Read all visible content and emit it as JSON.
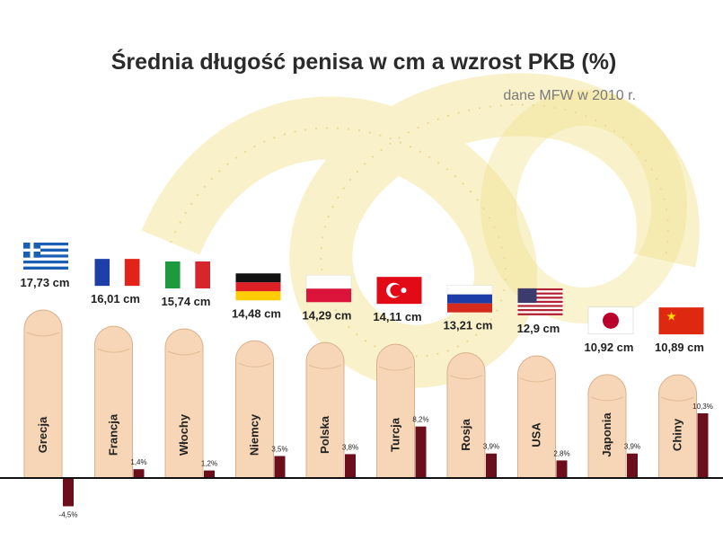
{
  "colors": {
    "shape": "#f6d6b6",
    "shape_stroke": "#d9b08c",
    "gdp_bar": "#6b0f1c",
    "baseline": "#111111",
    "tape": "#f1e08a",
    "tape_dark": "#d9c460"
  },
  "chart_data": {
    "type": "bar",
    "title": "Średnia długość penisa w cm a wzrost PKB (%)",
    "subtitle": "dane MFW w 2010 r.",
    "series": [
      {
        "name": "",
        "values": [
          17.73,
          16.01,
          15.74,
          14.48,
          14.29,
          14.11,
          13.21,
          12.9,
          10.92,
          10.89
        ],
        "labels": [
          "17,73 cm",
          "16,01 cm",
          "15,74 cm",
          "14,48 cm",
          "14,29 cm",
          "14,11 cm",
          "13,21 cm",
          "12,9 cm",
          "10,92 cm",
          "10,89 cm"
        ]
      },
      {
        "name": "",
        "values": [
          -4.5,
          1.4,
          1.2,
          3.5,
          3.8,
          8.2,
          3.9,
          2.8,
          3.9,
          10.3
        ],
        "labels": [
          "-4,5%",
          "1,4%",
          "1,2%",
          "3,5%",
          "3,8%",
          "8,2%",
          "3,9%",
          "2,8%",
          "3,9%",
          "10,3%"
        ]
      }
    ],
    "categories": [
      "Grecja",
      "Francja",
      "Włochy",
      "Niemcy",
      "Polska",
      "Turcja",
      "Rosja",
      "USA",
      "Japonia",
      "Chiny"
    ],
    "flags": [
      "greece-flag",
      "france-flag",
      "italy-flag",
      "germany-flag",
      "poland-flag",
      "turkey-flag",
      "russia-flag",
      "usa-flag",
      "japan-flag",
      "china-flag"
    ],
    "ylim_length": [
      0,
      17.73
    ],
    "ylim_gdp": [
      -4.5,
      10.3
    ],
    "grid": false,
    "legend": "none",
    "background_image": "measuring-tape"
  }
}
